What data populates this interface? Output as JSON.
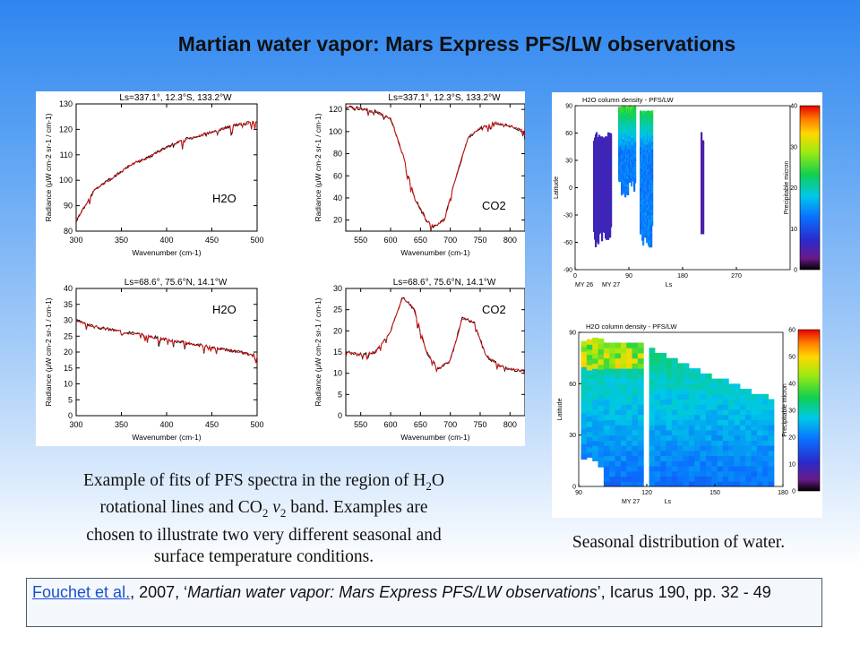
{
  "title": "Martian water vapor: Mars Express PFS/LW observations",
  "caption_left": {
    "line1_pre": "Example of fits of PFS spectra in the region of H",
    "line1_sub": "2",
    "line1_post": "O",
    "line2_pre": "rotational lines and CO",
    "line2_sub1": "2",
    "line2_mid": " ",
    "line2_nu": "v",
    "line2_sub2": "2",
    "line2_post": " band. Examples are",
    "line3": "chosen to illustrate two very different seasonal and",
    "line4": "surface temperature conditions."
  },
  "caption_right": "Seasonal distribution of water.",
  "reference": {
    "link": "Fouchet et al.",
    "year_text": ", 2007, ‘",
    "paper_title": "Martian water vapor: Mars Express PFS/LW observations",
    "journal": "’, Icarus 190, pp. 32 - 49"
  },
  "chart_data": [
    {
      "type": "line",
      "title": "Ls=337.1°, 12.3°S, 133.2°W",
      "label": "H2O",
      "xlabel": "Wavenumber (cm-1)",
      "ylabel": "Radiance (μW cm-2 sr-1 / cm-1)",
      "xlim": [
        300,
        500
      ],
      "ylim": [
        80,
        130
      ],
      "xticks": [
        300,
        350,
        400,
        450,
        500
      ],
      "yticks": [
        80,
        90,
        100,
        110,
        120,
        130
      ],
      "series": [
        {
          "x": [
            300,
            320,
            340,
            360,
            380,
            400,
            420,
            440,
            460,
            480,
            500
          ],
          "y": [
            84,
            96,
            101,
            106,
            109,
            113,
            116,
            118,
            120,
            122,
            123
          ]
        }
      ]
    },
    {
      "type": "line",
      "title": "Ls=337.1°, 12.3°S, 133.2°W",
      "label": "CO2",
      "xlabel": "Wavenumber (cm-1)",
      "ylabel": "Radiance (μW cm-2 sr-1 / cm-1)",
      "xlim": [
        525,
        825
      ],
      "ylim": [
        10,
        125
      ],
      "xticks": [
        550,
        600,
        650,
        700,
        750,
        800
      ],
      "yticks": [
        20,
        40,
        60,
        80,
        100,
        120
      ],
      "series": [
        {
          "x": [
            525,
            550,
            575,
            600,
            620,
            640,
            660,
            670,
            690,
            710,
            730,
            750,
            775,
            800,
            825
          ],
          "y": [
            122,
            121,
            118,
            112,
            80,
            40,
            20,
            14,
            20,
            60,
            95,
            103,
            108,
            105,
            100
          ]
        }
      ]
    },
    {
      "type": "line",
      "title": "Ls=68.6°, 75.6°N, 14.1°W",
      "label": "H2O",
      "xlabel": "Wavenumber (cm-1)",
      "ylabel": "Radiance (μW cm-2 sr-1 / cm-1)",
      "xlim": [
        300,
        500
      ],
      "ylim": [
        0,
        40
      ],
      "xticks": [
        300,
        350,
        400,
        450,
        500
      ],
      "yticks": [
        0,
        5,
        10,
        15,
        20,
        25,
        30,
        35,
        40
      ],
      "series": [
        {
          "x": [
            300,
            320,
            340,
            360,
            380,
            400,
            420,
            440,
            460,
            480,
            500
          ],
          "y": [
            30,
            28,
            27,
            26,
            25,
            24,
            23,
            22,
            21,
            20,
            19
          ]
        }
      ]
    },
    {
      "type": "line",
      "title": "Ls=68.6°, 75.6°N, 14.1°W",
      "label": "CO2",
      "xlabel": "Wavenumber (cm-1)",
      "ylabel": "Radiance (μW cm-2 sr-1 / cm-1)",
      "xlim": [
        525,
        825
      ],
      "ylim": [
        0,
        30
      ],
      "xticks": [
        550,
        600,
        650,
        700,
        750,
        800
      ],
      "yticks": [
        0,
        5,
        10,
        15,
        20,
        25,
        30
      ],
      "series": [
        {
          "x": [
            525,
            550,
            575,
            600,
            620,
            640,
            660,
            680,
            700,
            720,
            740,
            760,
            780,
            800,
            825
          ],
          "y": [
            15,
            14.5,
            15,
            20,
            28,
            25,
            15,
            11,
            13,
            23,
            22,
            14,
            12,
            11,
            10.5
          ]
        }
      ]
    },
    {
      "type": "heatmap",
      "title": "H2O column density - PFS/LW",
      "xlabel": "Ls",
      "ylabel": "Latitude",
      "colorbar_label": "Precipitable micron",
      "xlim": [
        0,
        360
      ],
      "ylim": [
        -90,
        90
      ],
      "xticks": [
        0,
        90,
        180,
        270
      ],
      "yticks": [
        -90,
        -60,
        -30,
        0,
        30,
        60,
        90
      ],
      "colorbar_ticks": [
        0,
        10,
        20,
        30,
        40
      ],
      "x_sublabels": [
        "MY 26",
        "MY 27"
      ]
    },
    {
      "type": "heatmap",
      "title": "H2O column density - PFS/LW",
      "xlabel": "Ls",
      "ylabel": "Latitude",
      "colorbar_label": "Precipitable micron",
      "xlim": [
        90,
        180
      ],
      "ylim": [
        0,
        90
      ],
      "xticks": [
        90,
        120,
        150,
        180
      ],
      "yticks": [
        0,
        30,
        60,
        90
      ],
      "colorbar_ticks": [
        0,
        10,
        20,
        30,
        40,
        50,
        60
      ],
      "x_sublabels": [
        "MY 27"
      ]
    }
  ]
}
